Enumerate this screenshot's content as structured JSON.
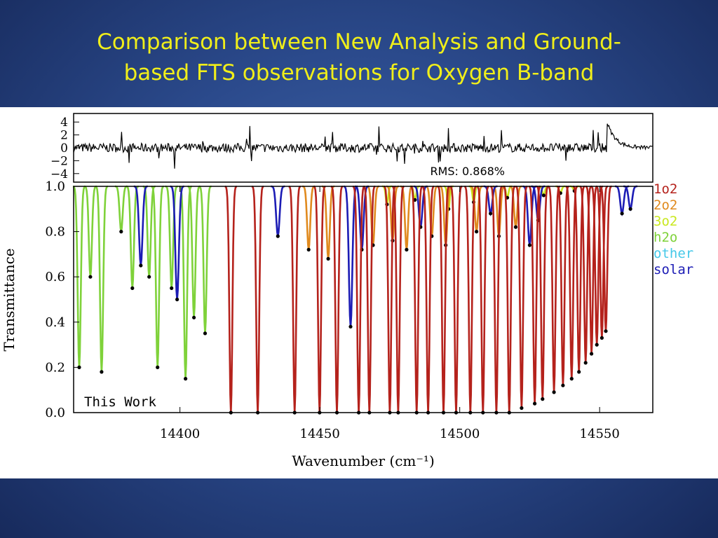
{
  "slide": {
    "title_line1": "Comparison between New Analysis and Ground-",
    "title_line2": "based FTS observations for Oxygen B-band"
  },
  "chart_data": [
    {
      "type": "line",
      "panel": "residual",
      "yticks": [
        "4",
        "2",
        "0",
        "−2",
        "−4"
      ],
      "ylim": [
        -5,
        5
      ],
      "xlim": [
        14362,
        14569
      ],
      "annotation": "RMS: 0.868%"
    },
    {
      "type": "line",
      "panel": "transmittance",
      "ylabel": "Transmittance",
      "xlabel": "Wavenumber (cm⁻¹)",
      "yticks": [
        "1.0",
        "0.8",
        "0.6",
        "0.4",
        "0.2",
        "0.0"
      ],
      "xticks": [
        "14400",
        "14450",
        "14500",
        "14550"
      ],
      "ylim": [
        0,
        1
      ],
      "xlim": [
        14362,
        14569
      ],
      "inset_label": "This Work",
      "legend": [
        {
          "name": "1o2",
          "color": "#b5221c"
        },
        {
          "name": "2o2",
          "color": "#e08a1e"
        },
        {
          "name": "3o2",
          "color": "#c9e81e"
        },
        {
          "name": "h2o",
          "color": "#7fd23a"
        },
        {
          "name": "other",
          "color": "#45c8e8"
        },
        {
          "name": "solar",
          "color": "#1c1cb5"
        }
      ],
      "series": [
        {
          "name": "1o2",
          "x": [
            14418.2,
            14427.8,
            14441.0,
            14449.9,
            14456.1,
            14463.9,
            14467.7,
            14475.0,
            14478.0,
            14484.6,
            14488.7,
            14494.2,
            14498.7,
            14503.8,
            14508.3,
            14513.1,
            14517.7,
            14522.1,
            14526.8,
            14529.6,
            14533.7,
            14536.9,
            14540.0,
            14542.6,
            14545.0,
            14547.1,
            14549.0,
            14550.8,
            14552.2
          ],
          "values": [
            0.0,
            0.0,
            0.0,
            0.0,
            0.0,
            0.0,
            0.0,
            0.0,
            0.0,
            0.0,
            0.0,
            0.0,
            0.0,
            0.0,
            0.0,
            0.0,
            0.0,
            0.02,
            0.04,
            0.06,
            0.09,
            0.12,
            0.15,
            0.18,
            0.22,
            0.26,
            0.3,
            0.33,
            0.36
          ]
        },
        {
          "name": "h2o",
          "x": [
            14364,
            14368,
            14372,
            14379,
            14383,
            14389,
            14392,
            14397,
            14402,
            14405,
            14409
          ],
          "values": [
            0.2,
            0.6,
            0.18,
            0.8,
            0.55,
            0.6,
            0.2,
            0.55,
            0.15,
            0.42,
            0.35
          ]
        },
        {
          "name": "solar",
          "x": [
            14386,
            14399,
            14435,
            14461,
            14465,
            14486,
            14511,
            14525,
            14528,
            14558,
            14561
          ],
          "values": [
            0.65,
            0.5,
            0.78,
            0.38,
            0.72,
            0.82,
            0.88,
            0.74,
            0.85,
            0.88,
            0.9
          ]
        },
        {
          "name": "2o2",
          "x": [
            14446,
            14453,
            14469,
            14476,
            14481,
            14490,
            14495,
            14506,
            14514,
            14520
          ],
          "values": [
            0.72,
            0.68,
            0.74,
            0.76,
            0.72,
            0.78,
            0.74,
            0.8,
            0.78,
            0.82
          ]
        },
        {
          "name": "3o2",
          "x": [
            14474,
            14484,
            14496,
            14505,
            14517,
            14530,
            14536,
            14541
          ],
          "values": [
            0.92,
            0.94,
            0.9,
            0.93,
            0.95,
            0.96,
            0.97,
            0.98
          ]
        }
      ]
    }
  ]
}
